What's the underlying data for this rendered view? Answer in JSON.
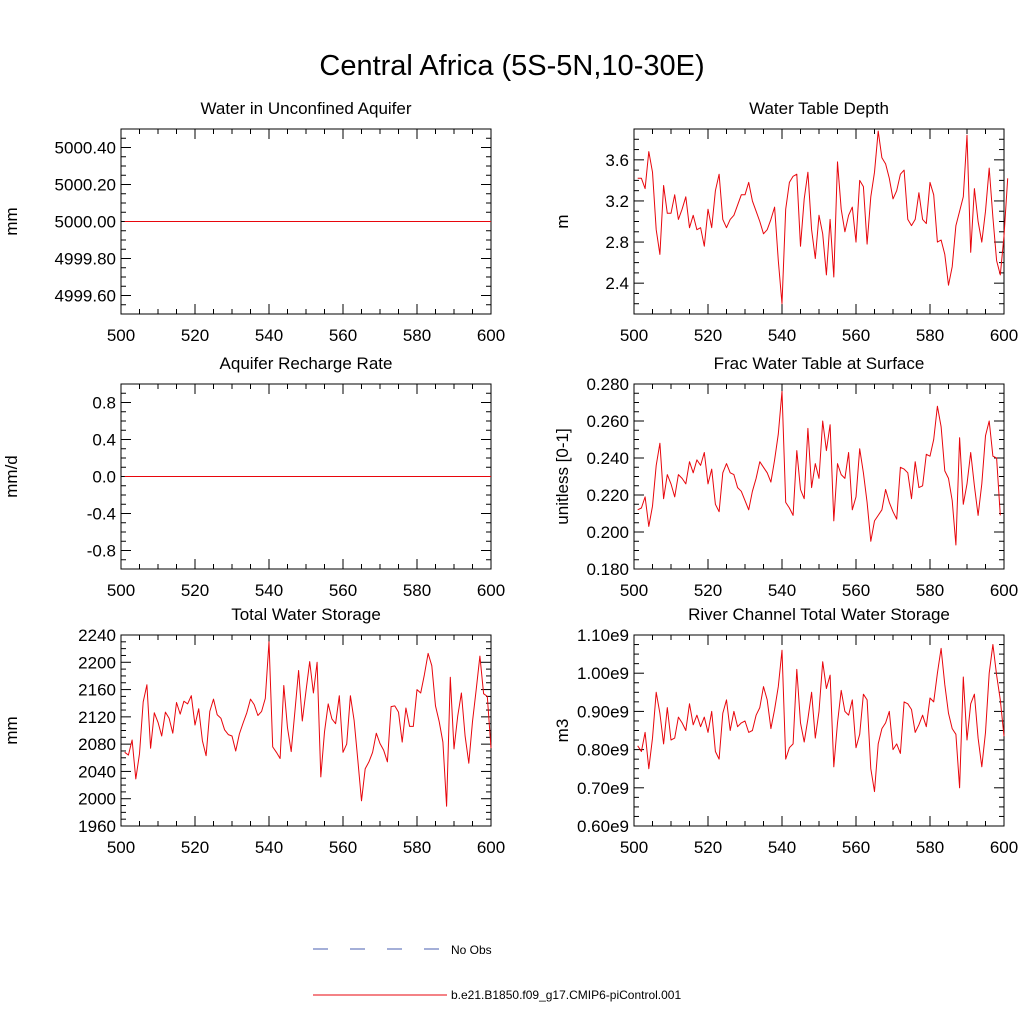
{
  "title": "Central Africa (5S-5N,10-30E)",
  "legend": {
    "placement": "bottom-center",
    "obs_label": "No Obs",
    "model_label": "b.e21.B1850.f09_g17.CMIP6-piControl.001",
    "obs_color": "#4a5fb0",
    "model_color": "#e8060c"
  },
  "chart_data": [
    {
      "type": "line",
      "title": "Water in Unconfined Aquifer",
      "ylabel": "mm",
      "xlabel": "",
      "xlim": [
        500,
        600
      ],
      "ylim": [
        4999.5,
        5000.5
      ],
      "xticks": [
        "500",
        "520",
        "540",
        "560",
        "580",
        "600"
      ],
      "yticks": [
        "4999.60",
        "4999.80",
        "5000.00",
        "5000.20",
        "5000.40"
      ],
      "series": [
        {
          "name": "b.e21.B1850.f09_g17.CMIP6-piControl.001",
          "color": "#e8060c",
          "x": [
            501,
            600
          ],
          "y": [
            5000.0,
            5000.0
          ]
        }
      ]
    },
    {
      "type": "line",
      "title": "Water Table Depth",
      "ylabel": "m",
      "xlabel": "",
      "xlim": [
        500,
        600
      ],
      "ylim": [
        2.1,
        3.9
      ],
      "xticks": [
        "500",
        "520",
        "540",
        "560",
        "580",
        "600"
      ],
      "yticks": [
        "2.4",
        "2.8",
        "3.2",
        "3.6"
      ],
      "series": [
        {
          "name": "b.e21.B1850.f09_g17.CMIP6-piControl.001",
          "color": "#e8060c",
          "x_start": 501,
          "x_step": 1,
          "y": [
            3.42,
            3.42,
            3.32,
            3.68,
            3.48,
            2.92,
            2.68,
            3.35,
            3.08,
            3.08,
            3.26,
            3.02,
            3.12,
            3.24,
            2.94,
            3.06,
            2.92,
            2.94,
            2.76,
            3.12,
            2.94,
            3.3,
            3.46,
            3.02,
            2.94,
            3.02,
            3.06,
            3.16,
            3.26,
            3.26,
            3.38,
            3.2,
            3.1,
            3.0,
            2.88,
            2.92,
            3.02,
            3.14,
            2.62,
            2.2,
            3.12,
            3.38,
            3.44,
            3.46,
            2.76,
            3.22,
            3.48,
            2.92,
            2.64,
            3.06,
            2.88,
            2.48,
            3.02,
            2.46,
            3.58,
            3.12,
            2.9,
            3.06,
            3.14,
            2.8,
            3.4,
            3.34,
            2.78,
            3.24,
            3.48,
            3.88,
            3.62,
            3.56,
            3.42,
            3.22,
            3.3,
            3.46,
            3.5,
            3.02,
            2.96,
            3.02,
            3.28,
            3.02,
            2.98,
            3.38,
            3.26,
            2.8,
            2.82,
            2.68,
            2.38,
            2.56,
            2.96,
            3.1,
            3.24,
            3.84,
            2.7,
            3.32,
            3.0,
            2.8,
            3.1,
            3.52,
            3.04,
            2.62,
            2.48,
            2.86,
            3.42
          ]
        }
      ]
    },
    {
      "type": "line",
      "title": "Aquifer Recharge Rate",
      "ylabel": "mm/d",
      "xlabel": "",
      "xlim": [
        500,
        600
      ],
      "ylim": [
        -1.0,
        1.0
      ],
      "xticks": [
        "500",
        "520",
        "540",
        "560",
        "580",
        "600"
      ],
      "yticks": [
        "-0.8",
        "-0.4",
        "0.0",
        "0.4",
        "0.8"
      ],
      "series": [
        {
          "name": "b.e21.B1850.f09_g17.CMIP6-piControl.001",
          "color": "#e8060c",
          "x": [
            501,
            600
          ],
          "y": [
            0.0,
            0.0
          ]
        }
      ]
    },
    {
      "type": "line",
      "title": "Frac Water Table at Surface",
      "ylabel": "unitless [0-1]",
      "xlabel": "",
      "xlim": [
        500,
        600
      ],
      "ylim": [
        0.18,
        0.28
      ],
      "xticks": [
        "500",
        "520",
        "540",
        "560",
        "580",
        "600"
      ],
      "yticks": [
        "0.180",
        "0.200",
        "0.220",
        "0.240",
        "0.260",
        "0.280"
      ],
      "series": [
        {
          "name": "b.e21.B1850.f09_g17.CMIP6-piControl.001",
          "color": "#e8060c",
          "x_start": 501,
          "x_step": 1,
          "y": [
            0.212,
            0.213,
            0.219,
            0.203,
            0.214,
            0.236,
            0.248,
            0.218,
            0.231,
            0.226,
            0.219,
            0.231,
            0.229,
            0.226,
            0.238,
            0.232,
            0.239,
            0.236,
            0.243,
            0.226,
            0.234,
            0.215,
            0.211,
            0.232,
            0.237,
            0.232,
            0.231,
            0.224,
            0.222,
            0.217,
            0.212,
            0.222,
            0.229,
            0.238,
            0.235,
            0.232,
            0.227,
            0.239,
            0.253,
            0.276,
            0.216,
            0.213,
            0.209,
            0.244,
            0.223,
            0.218,
            0.256,
            0.224,
            0.237,
            0.229,
            0.26,
            0.244,
            0.258,
            0.206,
            0.237,
            0.231,
            0.229,
            0.243,
            0.212,
            0.219,
            0.245,
            0.232,
            0.216,
            0.195,
            0.206,
            0.209,
            0.212,
            0.223,
            0.216,
            0.211,
            0.207,
            0.235,
            0.234,
            0.232,
            0.218,
            0.238,
            0.224,
            0.225,
            0.242,
            0.241,
            0.25,
            0.268,
            0.257,
            0.233,
            0.229,
            0.217,
            0.193,
            0.251,
            0.215,
            0.226,
            0.243,
            0.225,
            0.209,
            0.226,
            0.252,
            0.26,
            0.241,
            0.24,
            0.209
          ]
        }
      ]
    },
    {
      "type": "line",
      "title": "Total Water Storage",
      "ylabel": "mm",
      "xlabel": "",
      "xlim": [
        500,
        600
      ],
      "ylim": [
        1960,
        2240
      ],
      "xticks": [
        "500",
        "520",
        "540",
        "560",
        "580",
        "600"
      ],
      "yticks": [
        "1960",
        "2000",
        "2040",
        "2080",
        "2120",
        "2160",
        "2200",
        "2240"
      ],
      "series": [
        {
          "name": "b.e21.B1850.f09_g17.CMIP6-piControl.001",
          "color": "#e8060c",
          "x_start": 501,
          "x_step": 1,
          "y": [
            2068,
            2064,
            2086,
            2029,
            2066,
            2142,
            2167,
            2074,
            2126,
            2112,
            2092,
            2127,
            2118,
            2096,
            2141,
            2124,
            2143,
            2139,
            2151,
            2108,
            2132,
            2085,
            2063,
            2128,
            2146,
            2123,
            2118,
            2101,
            2094,
            2092,
            2070,
            2095,
            2111,
            2126,
            2146,
            2138,
            2122,
            2128,
            2147,
            2230,
            2076,
            2068,
            2059,
            2166,
            2104,
            2069,
            2128,
            2188,
            2114,
            2158,
            2201,
            2155,
            2200,
            2032,
            2098,
            2139,
            2117,
            2110,
            2151,
            2068,
            2080,
            2151,
            2115,
            2057,
            1997,
            2044,
            2054,
            2068,
            2096,
            2081,
            2071,
            2054,
            2135,
            2136,
            2127,
            2083,
            2133,
            2106,
            2106,
            2160,
            2155,
            2182,
            2213,
            2195,
            2136,
            2113,
            2083,
            1989,
            2178,
            2073,
            2121,
            2155,
            2092,
            2052,
            2113,
            2160,
            2209,
            2154,
            2150,
            2074
          ]
        }
      ]
    },
    {
      "type": "line",
      "title": "River Channel Total Water Storage",
      "ylabel": "m3",
      "xlabel": "",
      "xlim": [
        500,
        600
      ],
      "ylim": [
        600000000.0,
        1100000000.0
      ],
      "xticks": [
        "500",
        "520",
        "540",
        "560",
        "580",
        "600"
      ],
      "yticks": [
        "0.60e9",
        "0.70e9",
        "0.80e9",
        "0.90e9",
        "1.00e9",
        "1.10e9"
      ],
      "series": [
        {
          "name": "b.e21.B1850.f09_g17.CMIP6-piControl.001",
          "color": "#e8060c",
          "x_start": 501,
          "x_step": 1,
          "y": [
            810000000.0,
            795000000.0,
            845000000.0,
            750000000.0,
            830000000.0,
            950000000.0,
            895000000.0,
            815000000.0,
            910000000.0,
            825000000.0,
            830000000.0,
            885000000.0,
            870000000.0,
            850000000.0,
            920000000.0,
            865000000.0,
            890000000.0,
            860000000.0,
            885000000.0,
            845000000.0,
            900000000.0,
            795000000.0,
            775000000.0,
            895000000.0,
            930000000.0,
            850000000.0,
            900000000.0,
            860000000.0,
            870000000.0,
            875000000.0,
            845000000.0,
            850000000.0,
            890000000.0,
            910000000.0,
            965000000.0,
            930000000.0,
            855000000.0,
            905000000.0,
            965000000.0,
            1060000000.0,
            775000000.0,
            805000000.0,
            815000000.0,
            1010000000.0,
            870000000.0,
            820000000.0,
            880000000.0,
            950000000.0,
            830000000.0,
            900000000.0,
            1030000000.0,
            960000000.0,
            995000000.0,
            755000000.0,
            870000000.0,
            955000000.0,
            900000000.0,
            890000000.0,
            930000000.0,
            805000000.0,
            840000000.0,
            945000000.0,
            930000000.0,
            750000000.0,
            690000000.0,
            815000000.0,
            855000000.0,
            870000000.0,
            900000000.0,
            800000000.0,
            815000000.0,
            790000000.0,
            925000000.0,
            920000000.0,
            905000000.0,
            845000000.0,
            865000000.0,
            890000000.0,
            860000000.0,
            935000000.0,
            925000000.0,
            1000000000.0,
            1065000000.0,
            970000000.0,
            895000000.0,
            855000000.0,
            840000000.0,
            700000000.0,
            990000000.0,
            825000000.0,
            920000000.0,
            945000000.0,
            830000000.0,
            755000000.0,
            845000000.0,
            1000000000.0,
            1075000000.0,
            995000000.0,
            930000000.0,
            835000000.0
          ]
        }
      ]
    }
  ]
}
